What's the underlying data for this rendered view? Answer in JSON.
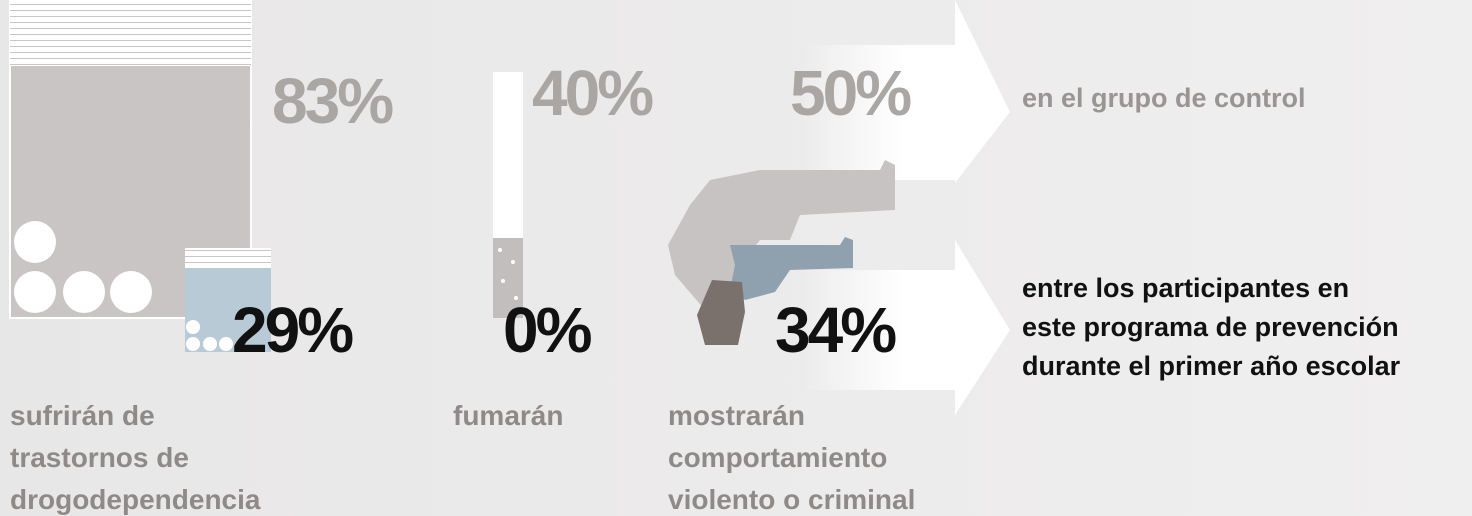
{
  "items": [
    {
      "label": [
        "sufrirán de",
        "trastornos de",
        "drogodependencia"
      ],
      "control": "83%",
      "program": "29%"
    },
    {
      "label": [
        "fumarán"
      ],
      "control": "40%",
      "program": "0%"
    },
    {
      "label": [
        "mostrarán",
        "comportamiento",
        "violento o criminal"
      ],
      "control": "50%",
      "program": "34%"
    }
  ],
  "legend": {
    "control": "en el grupo de control",
    "program": [
      "entre los participantes en",
      "este programa de prevención",
      "durante el primer año escolar"
    ]
  }
}
